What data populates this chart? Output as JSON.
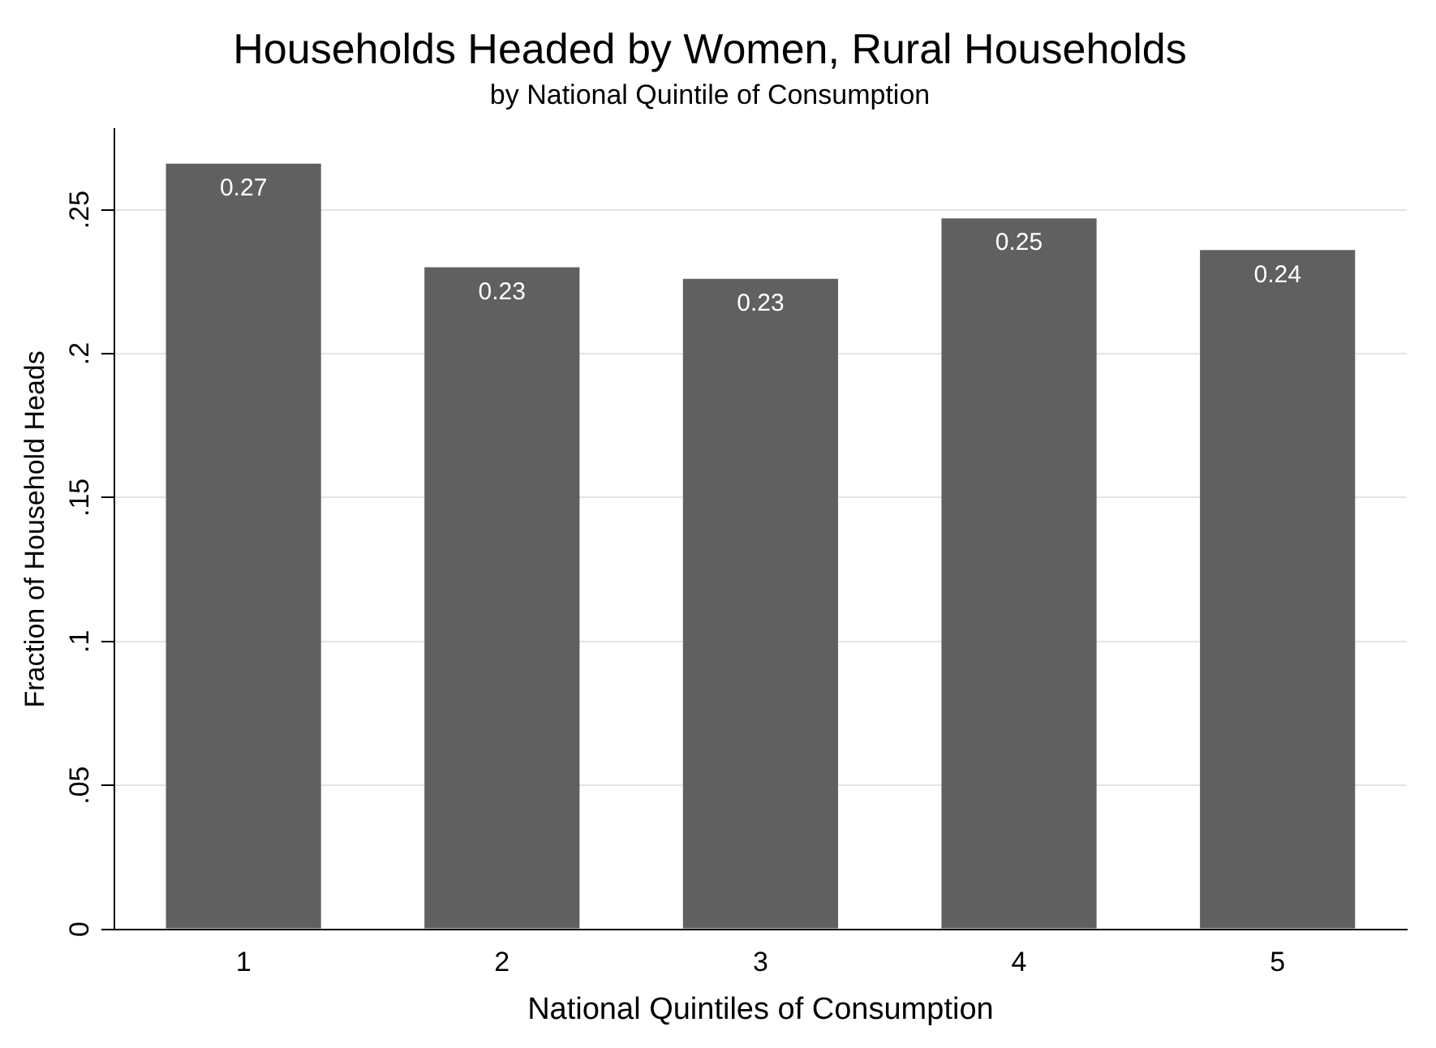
{
  "chart_data": {
    "type": "bar",
    "title": "Households Headed by Women, Rural Households",
    "subtitle": "by National Quintile of Consumption",
    "xlabel": "National Quintiles of Consumption",
    "ylabel": "Fraction of Household Heads",
    "categories": [
      "1",
      "2",
      "3",
      "4",
      "5"
    ],
    "values": [
      0.266,
      0.23,
      0.226,
      0.247,
      0.236
    ],
    "value_labels": [
      "0.27",
      "0.23",
      "0.23",
      "0.25",
      "0.24"
    ],
    "color": "#606060",
    "ylim": [
      0,
      0.278
    ],
    "yticks": [
      {
        "value": 0,
        "label": "0"
      },
      {
        "value": 0.05,
        "label": ".05"
      },
      {
        "value": 0.1,
        "label": ".1"
      },
      {
        "value": 0.15,
        "label": ".15"
      },
      {
        "value": 0.2,
        "label": ".2"
      },
      {
        "value": 0.25,
        "label": ".25"
      }
    ],
    "grid": "y",
    "legend": false
  }
}
